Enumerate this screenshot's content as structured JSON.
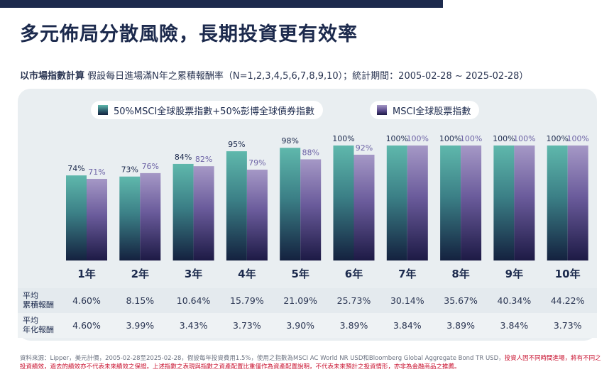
{
  "title": "多元佈局分散風險，長期投資更有效率",
  "subtitle_bold": "以市場指數計算",
  "subtitle_rest": "假設每日進場滿N年之累積報酬率（N=1,2,3,4,5,6,7,8,9,10）；統計期間：2005-02-28 ~ 2025-02-28）",
  "legend": [
    "50%MSCI全球股票指數+50%彭博全球債券指數",
    "MSCI全球股票指數"
  ],
  "colors": {
    "series_a_top": "#5fb8ac",
    "series_a_bottom": "#14213f",
    "series_b_top": "#a598c6",
    "series_b_bottom": "#1d1a45",
    "label_a": "#1c2a4d",
    "label_b": "#6e64a6"
  },
  "chart_data": {
    "type": "bar",
    "categories": [
      "1年",
      "2年",
      "3年",
      "4年",
      "5年",
      "6年",
      "7年",
      "8年",
      "9年",
      "10年"
    ],
    "series": [
      {
        "name": "50%MSCI全球股票指數+50%彭博全球債券指數",
        "values": [
          74,
          73,
          84,
          95,
          98,
          100,
          100,
          100,
          100,
          100
        ],
        "labels": [
          "74%",
          "73%",
          "84%",
          "95%",
          "98%",
          "100%",
          "100%",
          "100%",
          "100%",
          "100%"
        ]
      },
      {
        "name": "MSCI全球股票指數",
        "values": [
          71,
          76,
          82,
          79,
          88,
          92,
          100,
          100,
          100,
          100
        ],
        "labels": [
          "71%",
          "76%",
          "82%",
          "79%",
          "88%",
          "92%",
          "100%",
          "100%",
          "100%",
          "100%"
        ]
      }
    ],
    "ylim": [
      0,
      100
    ],
    "grid": false,
    "legend_position": "top"
  },
  "table": {
    "rows": [
      {
        "label": "平均\n累積報酬",
        "values": [
          "4.60%",
          "8.15%",
          "10.64%",
          "15.79%",
          "21.09%",
          "25.73%",
          "30.14%",
          "35.67%",
          "40.34%",
          "44.22%"
        ]
      },
      {
        "label": "平均\n年化報酬",
        "values": [
          "4.60%",
          "3.99%",
          "3.43%",
          "3.73%",
          "3.90%",
          "3.89%",
          "3.84%",
          "3.89%",
          "3.84%",
          "3.73%"
        ]
      }
    ]
  },
  "footnote": {
    "gray1": "資料來源：Lipper，美元計價，2005-02-28至2025-02-28，假設每年投資費用1.5%，使用之指數為MSCI AC World NR USD和Bloomberg Global Aggregate Bond TR USD，",
    "red1": "投資人因不同時間進場，將有不同之投資績效，過去的績效亦不代表未來績效之保證。上述指數之表現與指數之資產配置比重僅作為資產配置說明，不代表未來預計之投資情形，亦非為金融商品之推薦。"
  }
}
